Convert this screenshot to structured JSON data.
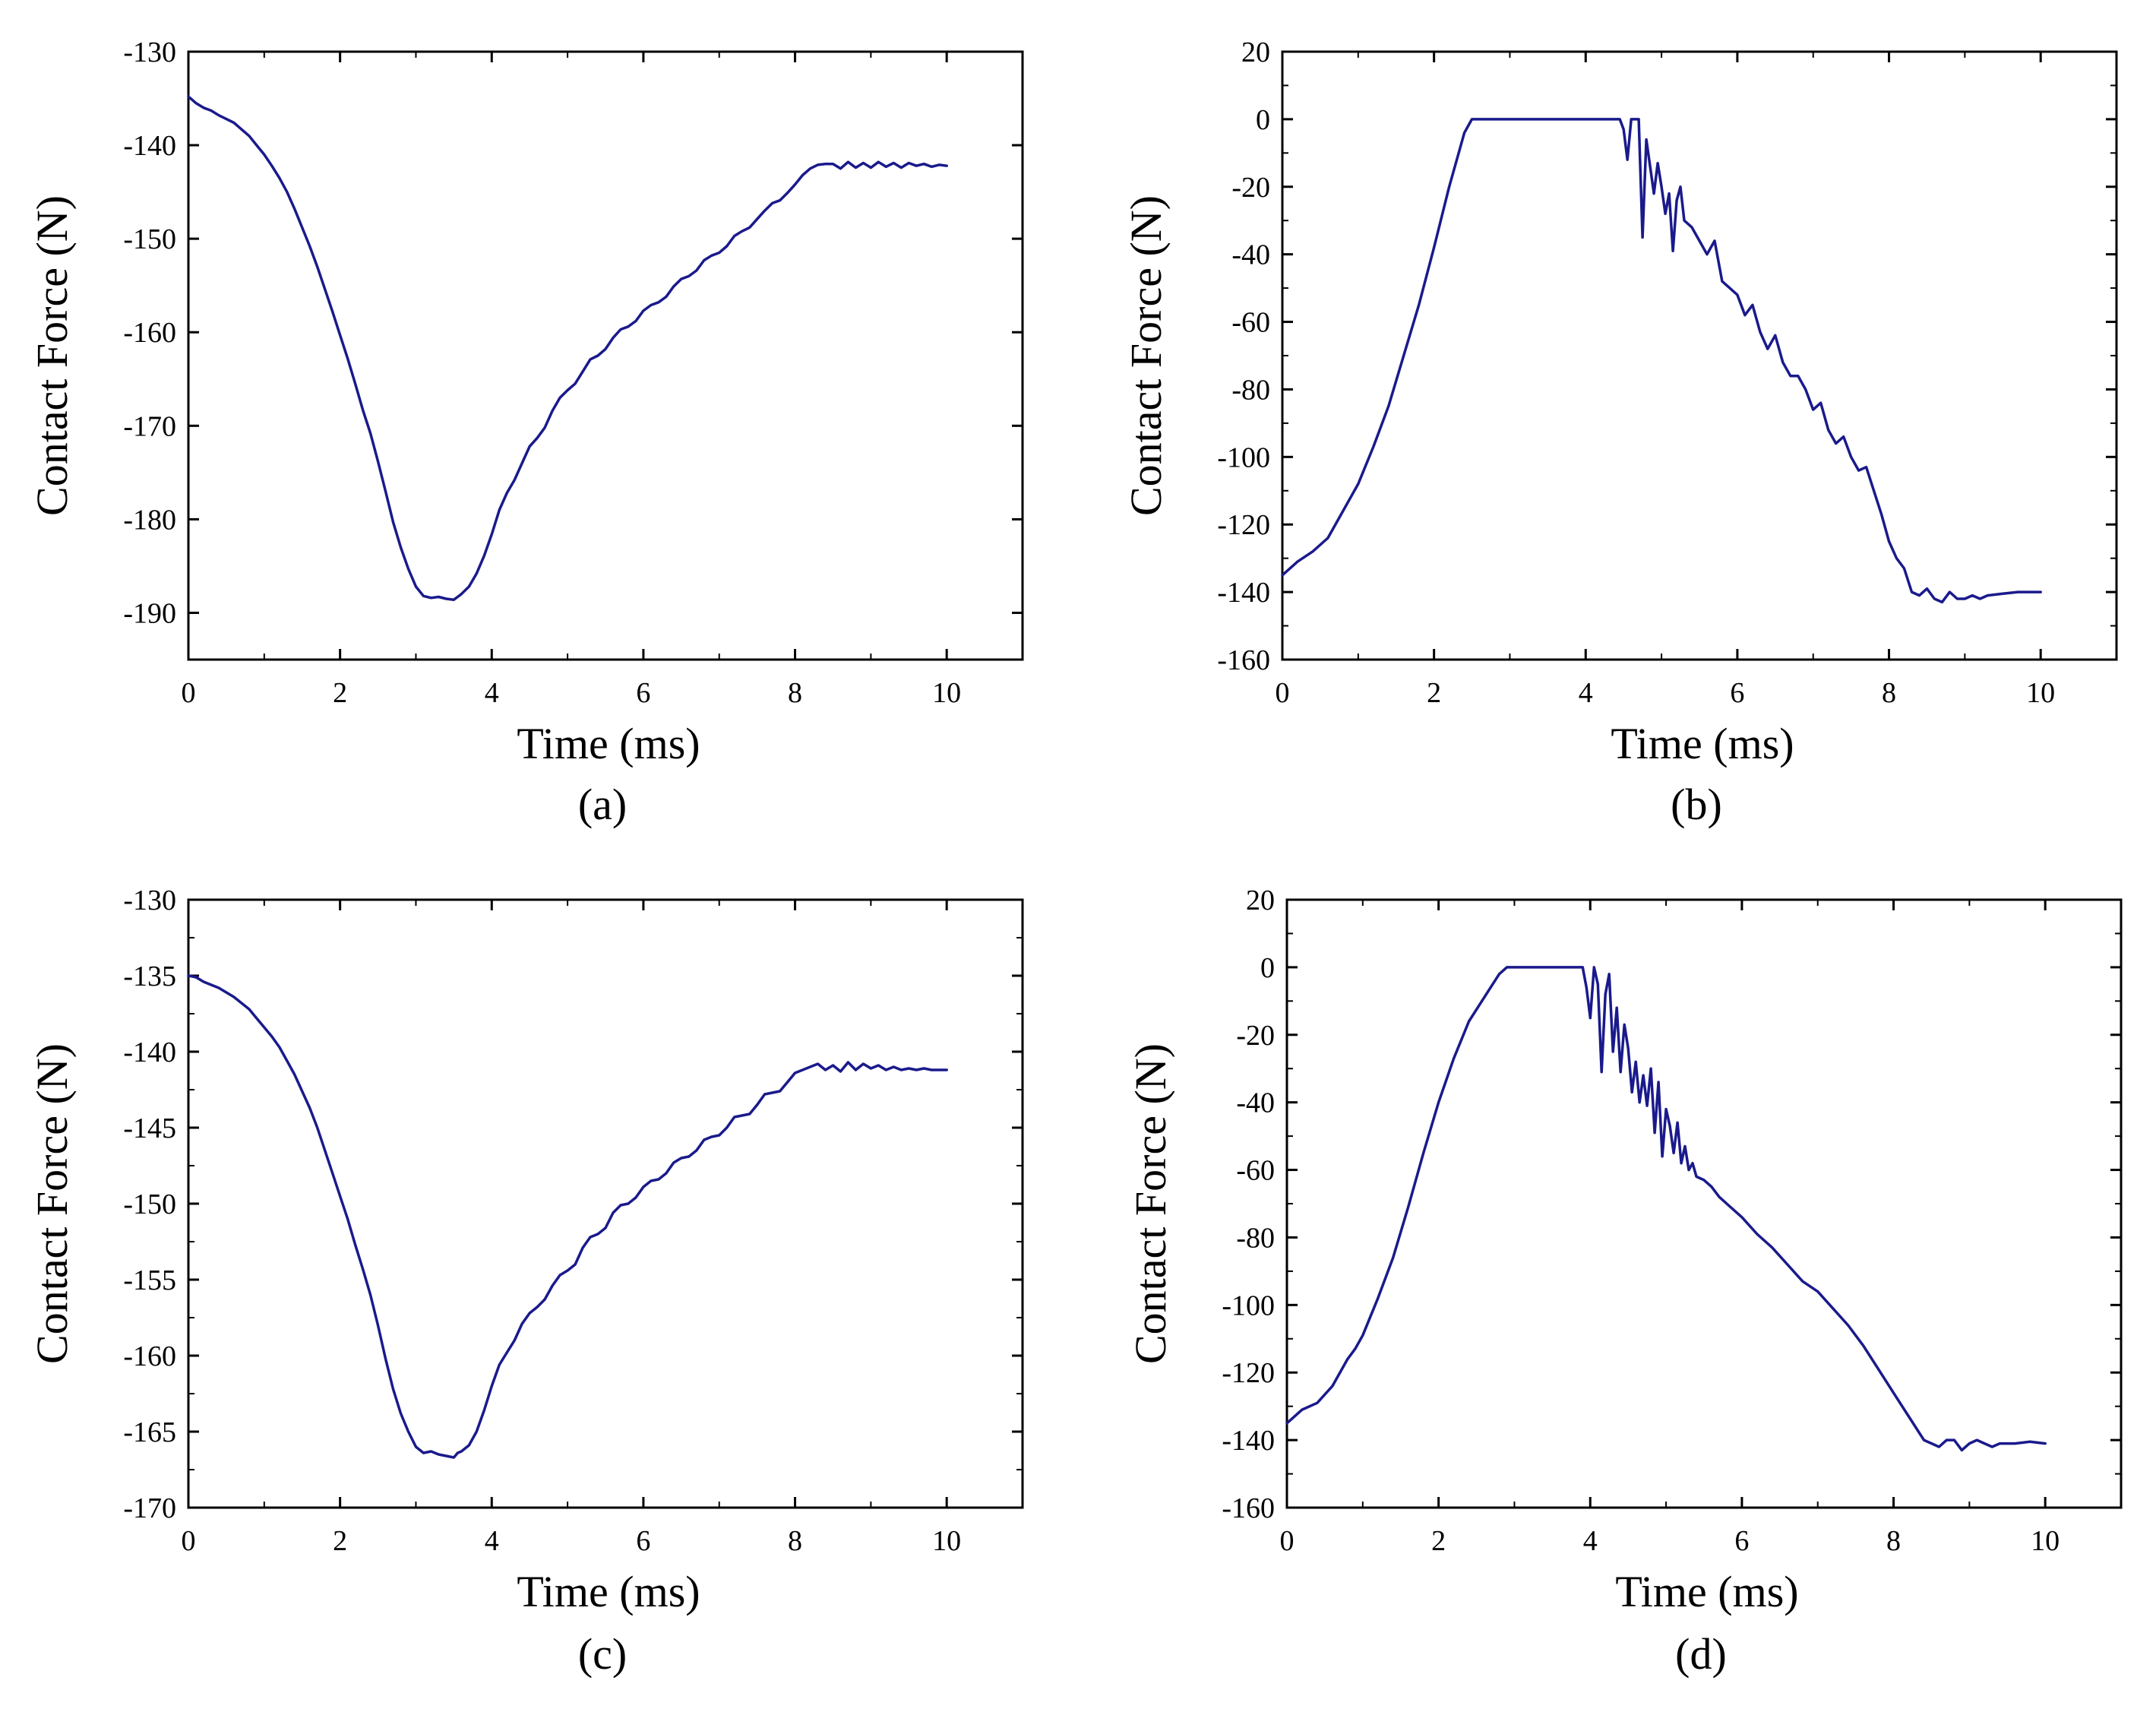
{
  "figure": {
    "line_color": "#1a1a8c",
    "axis_color": "#000000",
    "background": "#ffffff"
  },
  "chart_data": [
    {
      "id": "a",
      "type": "line",
      "caption": "(a)",
      "xlabel": "Time (ms)",
      "ylabel": "Contact Force (N)",
      "xlim": [
        0,
        11
      ],
      "ylim": [
        -195,
        -130
      ],
      "xticks": [
        0,
        2,
        4,
        6,
        8,
        10
      ],
      "yticks": [
        -190,
        -180,
        -170,
        -160,
        -150,
        -140,
        -130
      ],
      "grid": false,
      "series": [
        {
          "name": "contact force",
          "x": [
            0,
            0.1,
            0.2,
            0.3,
            0.4,
            0.5,
            0.6,
            0.7,
            0.8,
            0.9,
            1.0,
            1.1,
            1.2,
            1.3,
            1.4,
            1.5,
            1.6,
            1.7,
            1.8,
            1.9,
            2.0,
            2.1,
            2.2,
            2.3,
            2.4,
            2.5,
            2.6,
            2.7,
            2.8,
            2.9,
            3.0,
            3.1,
            3.2,
            3.3,
            3.4,
            3.5,
            3.55,
            3.6,
            3.7,
            3.8,
            3.9,
            4.0,
            4.1,
            4.2,
            4.3,
            4.4,
            4.5,
            4.6,
            4.7,
            4.8,
            4.9,
            5.0,
            5.1,
            5.2,
            5.3,
            5.4,
            5.5,
            5.6,
            5.7,
            5.8,
            5.9,
            6.0,
            6.1,
            6.2,
            6.3,
            6.4,
            6.5,
            6.6,
            6.7,
            6.8,
            6.9,
            7.0,
            7.1,
            7.2,
            7.3,
            7.4,
            7.5,
            7.6,
            7.7,
            7.8,
            7.9,
            8.0,
            8.1,
            8.2,
            8.3,
            8.4,
            8.5,
            8.6,
            8.7,
            8.8,
            8.9,
            9.0,
            9.1,
            9.2,
            9.3,
            9.4,
            9.5,
            9.6,
            9.7,
            9.8,
            9.9,
            10.0
          ],
          "y": [
            -134.8,
            -135.5,
            -136.0,
            -136.3,
            -136.8,
            -137.2,
            -137.6,
            -138.3,
            -139.0,
            -140.0,
            -141.0,
            -142.2,
            -143.5,
            -145.0,
            -146.8,
            -148.8,
            -150.8,
            -153.0,
            -155.4,
            -157.8,
            -160.3,
            -162.8,
            -165.5,
            -168.3,
            -170.8,
            -173.8,
            -177.0,
            -180.3,
            -183.0,
            -185.3,
            -187.2,
            -188.2,
            -188.4,
            -188.3,
            -188.5,
            -188.6,
            -188.3,
            -188.0,
            -187.2,
            -185.8,
            -183.9,
            -181.6,
            -179.0,
            -177.2,
            -175.8,
            -174.0,
            -172.2,
            -171.3,
            -170.2,
            -168.4,
            -167.0,
            -166.2,
            -165.5,
            -164.2,
            -162.9,
            -162.5,
            -161.8,
            -160.6,
            -159.7,
            -159.4,
            -158.8,
            -157.7,
            -157.1,
            -156.8,
            -156.2,
            -155.1,
            -154.3,
            -154.0,
            -153.4,
            -152.3,
            -151.8,
            -151.5,
            -150.8,
            -149.7,
            -149.2,
            -148.8,
            -147.9,
            -147.0,
            -146.2,
            -145.9,
            -145.1,
            -144.2,
            -143.2,
            -142.5,
            -142.1,
            -142.0,
            -142.0,
            -142.5,
            -141.8,
            -142.4,
            -141.9,
            -142.4,
            -141.8,
            -142.3,
            -141.9,
            -142.4,
            -141.9,
            -142.2,
            -142.0,
            -142.3,
            -142.1,
            -142.2
          ]
        }
      ]
    },
    {
      "id": "b",
      "type": "line",
      "caption": "(b)",
      "xlabel": "Time (ms)",
      "ylabel": "Contact Force (N)",
      "xlim": [
        0,
        11
      ],
      "ylim": [
        -160,
        20
      ],
      "xticks": [
        0,
        2,
        4,
        6,
        8,
        10
      ],
      "yticks": [
        -160,
        -140,
        -120,
        -100,
        -80,
        -60,
        -40,
        -20,
        0,
        20
      ],
      "grid": false,
      "series": [
        {
          "name": "contact force",
          "x": [
            0,
            0.2,
            0.4,
            0.6,
            0.8,
            0.9,
            1.0,
            1.2,
            1.4,
            1.6,
            1.8,
            2.0,
            2.2,
            2.4,
            2.5,
            3.0,
            3.5,
            4.0,
            4.45,
            4.5,
            4.55,
            4.6,
            4.65,
            4.7,
            4.75,
            4.8,
            4.85,
            4.9,
            4.95,
            5.0,
            5.05,
            5.1,
            5.15,
            5.2,
            5.25,
            5.3,
            5.4,
            5.5,
            5.6,
            5.7,
            5.8,
            5.9,
            6.0,
            6.1,
            6.2,
            6.3,
            6.4,
            6.5,
            6.6,
            6.7,
            6.8,
            6.9,
            7.0,
            7.1,
            7.2,
            7.3,
            7.4,
            7.5,
            7.6,
            7.7,
            7.8,
            7.9,
            8.0,
            8.1,
            8.2,
            8.3,
            8.4,
            8.5,
            8.6,
            8.7,
            8.8,
            8.9,
            9.0,
            9.1,
            9.2,
            9.3,
            9.5,
            9.7,
            10.0
          ],
          "y": [
            -135,
            -131,
            -128,
            -124,
            -116,
            -112,
            -108,
            -97,
            -85,
            -70,
            -55,
            -38,
            -20,
            -4,
            0,
            0,
            0,
            0,
            0,
            -3,
            -12,
            0,
            0,
            0,
            -35,
            -6,
            -14,
            -22,
            -13,
            -20,
            -28,
            -22,
            -39,
            -24,
            -20,
            -30,
            -32,
            -36,
            -40,
            -36,
            -48,
            -50,
            -52,
            -58,
            -55,
            -63,
            -68,
            -64,
            -72,
            -76,
            -76,
            -80,
            -86,
            -84,
            -92,
            -96,
            -94,
            -100,
            -104,
            -103,
            -110,
            -117,
            -125,
            -130,
            -133,
            -140,
            -141,
            -139,
            -142,
            -143,
            -140,
            -142,
            -142,
            -141,
            -142,
            -141,
            -140.5,
            -140,
            -140
          ]
        }
      ]
    },
    {
      "id": "c",
      "type": "line",
      "caption": "(c)",
      "xlabel": "Time (ms)",
      "ylabel": "Contact Force (N)",
      "xlim": [
        0,
        11
      ],
      "ylim": [
        -170,
        -130
      ],
      "xticks": [
        0,
        2,
        4,
        6,
        8,
        10
      ],
      "yticks": [
        -170,
        -165,
        -160,
        -155,
        -150,
        -145,
        -140,
        -135,
        -130
      ],
      "grid": false,
      "series": [
        {
          "name": "contact force",
          "x": [
            0,
            0.1,
            0.2,
            0.3,
            0.4,
            0.5,
            0.6,
            0.7,
            0.8,
            0.9,
            1.0,
            1.1,
            1.2,
            1.3,
            1.4,
            1.5,
            1.6,
            1.7,
            1.8,
            1.9,
            2.0,
            2.1,
            2.2,
            2.3,
            2.4,
            2.5,
            2.6,
            2.7,
            2.8,
            2.9,
            3.0,
            3.1,
            3.2,
            3.3,
            3.4,
            3.5,
            3.55,
            3.6,
            3.7,
            3.8,
            3.9,
            4.0,
            4.1,
            4.2,
            4.3,
            4.4,
            4.5,
            4.6,
            4.7,
            4.8,
            4.9,
            5.0,
            5.1,
            5.2,
            5.3,
            5.4,
            5.5,
            5.6,
            5.7,
            5.8,
            5.9,
            6.0,
            6.1,
            6.2,
            6.3,
            6.4,
            6.5,
            6.6,
            6.7,
            6.8,
            6.9,
            7.0,
            7.1,
            7.2,
            7.3,
            7.4,
            7.5,
            7.6,
            7.7,
            7.8,
            7.9,
            8.0,
            8.1,
            8.2,
            8.3,
            8.4,
            8.5,
            8.6,
            8.7,
            8.8,
            8.9,
            9.0,
            9.1,
            9.2,
            9.3,
            9.4,
            9.5,
            9.6,
            9.7,
            9.8,
            9.9,
            10.0
          ],
          "y": [
            -135.0,
            -135.1,
            -135.4,
            -135.6,
            -135.8,
            -136.1,
            -136.4,
            -136.8,
            -137.2,
            -137.8,
            -138.4,
            -139.0,
            -139.7,
            -140.6,
            -141.5,
            -142.6,
            -143.7,
            -145.0,
            -146.5,
            -148.0,
            -149.5,
            -151.0,
            -152.7,
            -154.3,
            -156.0,
            -158.0,
            -160.2,
            -162.2,
            -163.8,
            -165.0,
            -166.0,
            -166.4,
            -166.3,
            -166.5,
            -166.6,
            -166.7,
            -166.4,
            -166.3,
            -165.9,
            -165.0,
            -163.6,
            -162.0,
            -160.6,
            -159.8,
            -159.0,
            -157.9,
            -157.2,
            -156.8,
            -156.3,
            -155.4,
            -154.7,
            -154.4,
            -154.0,
            -152.9,
            -152.2,
            -152.0,
            -151.6,
            -150.6,
            -150.1,
            -150.0,
            -149.6,
            -148.9,
            -148.5,
            -148.4,
            -148.0,
            -147.3,
            -147.0,
            -146.9,
            -146.5,
            -145.8,
            -145.6,
            -145.5,
            -145.0,
            -144.3,
            -144.2,
            -144.1,
            -143.5,
            -142.8,
            -142.7,
            -142.6,
            -142.0,
            -141.4,
            -141.2,
            -141.0,
            -140.8,
            -141.2,
            -140.9,
            -141.3,
            -140.7,
            -141.2,
            -140.8,
            -141.1,
            -140.9,
            -141.2,
            -141.0,
            -141.2,
            -141.1,
            -141.2,
            -141.1,
            -141.2,
            -141.2,
            -141.2
          ]
        }
      ]
    },
    {
      "id": "d",
      "type": "line",
      "caption": "(d)",
      "xlabel": "Time (ms)",
      "ylabel": "Contact Force (N)",
      "xlim": [
        0,
        11
      ],
      "ylim": [
        -160,
        20
      ],
      "xticks": [
        0,
        2,
        4,
        6,
        8,
        10
      ],
      "yticks": [
        -160,
        -140,
        -120,
        -100,
        -80,
        -60,
        -40,
        -20,
        0,
        20
      ],
      "grid": false,
      "series": [
        {
          "name": "contact force",
          "x": [
            0,
            0.2,
            0.4,
            0.6,
            0.8,
            0.9,
            1.0,
            1.2,
            1.4,
            1.6,
            1.8,
            2.0,
            2.2,
            2.4,
            2.6,
            2.8,
            2.9,
            3.0,
            3.5,
            3.9,
            3.95,
            4.0,
            4.05,
            4.1,
            4.15,
            4.2,
            4.25,
            4.3,
            4.35,
            4.4,
            4.45,
            4.5,
            4.55,
            4.6,
            4.65,
            4.7,
            4.75,
            4.8,
            4.85,
            4.9,
            4.95,
            5.0,
            5.05,
            5.1,
            5.15,
            5.2,
            5.25,
            5.3,
            5.35,
            5.4,
            5.5,
            5.6,
            5.7,
            5.8,
            6.0,
            6.2,
            6.4,
            6.6,
            6.8,
            7.0,
            7.2,
            7.4,
            7.6,
            7.8,
            8.0,
            8.2,
            8.4,
            8.6,
            8.7,
            8.8,
            8.9,
            9.0,
            9.1,
            9.2,
            9.3,
            9.4,
            9.6,
            9.8,
            10.0
          ],
          "y": [
            -135,
            -131,
            -129,
            -124,
            -116,
            -113,
            -109,
            -98,
            -86,
            -71,
            -55,
            -40,
            -27,
            -16,
            -9,
            -2,
            0,
            0,
            0,
            0,
            -6,
            -15,
            0,
            -5,
            -31,
            -8,
            -2,
            -25,
            -12,
            -31,
            -17,
            -24,
            -37,
            -28,
            -40,
            -32,
            -41,
            -30,
            -49,
            -34,
            -56,
            -42,
            -47,
            -55,
            -46,
            -58,
            -53,
            -60,
            -58,
            -62,
            -63,
            -65,
            -68,
            -70,
            -74,
            -79,
            -83,
            -88,
            -93,
            -96,
            -101,
            -106,
            -112,
            -119,
            -126,
            -133,
            -140,
            -142,
            -140,
            -140,
            -143,
            -141,
            -140,
            -141,
            -142,
            -141,
            -141,
            -140.5,
            -141
          ]
        }
      ]
    }
  ]
}
